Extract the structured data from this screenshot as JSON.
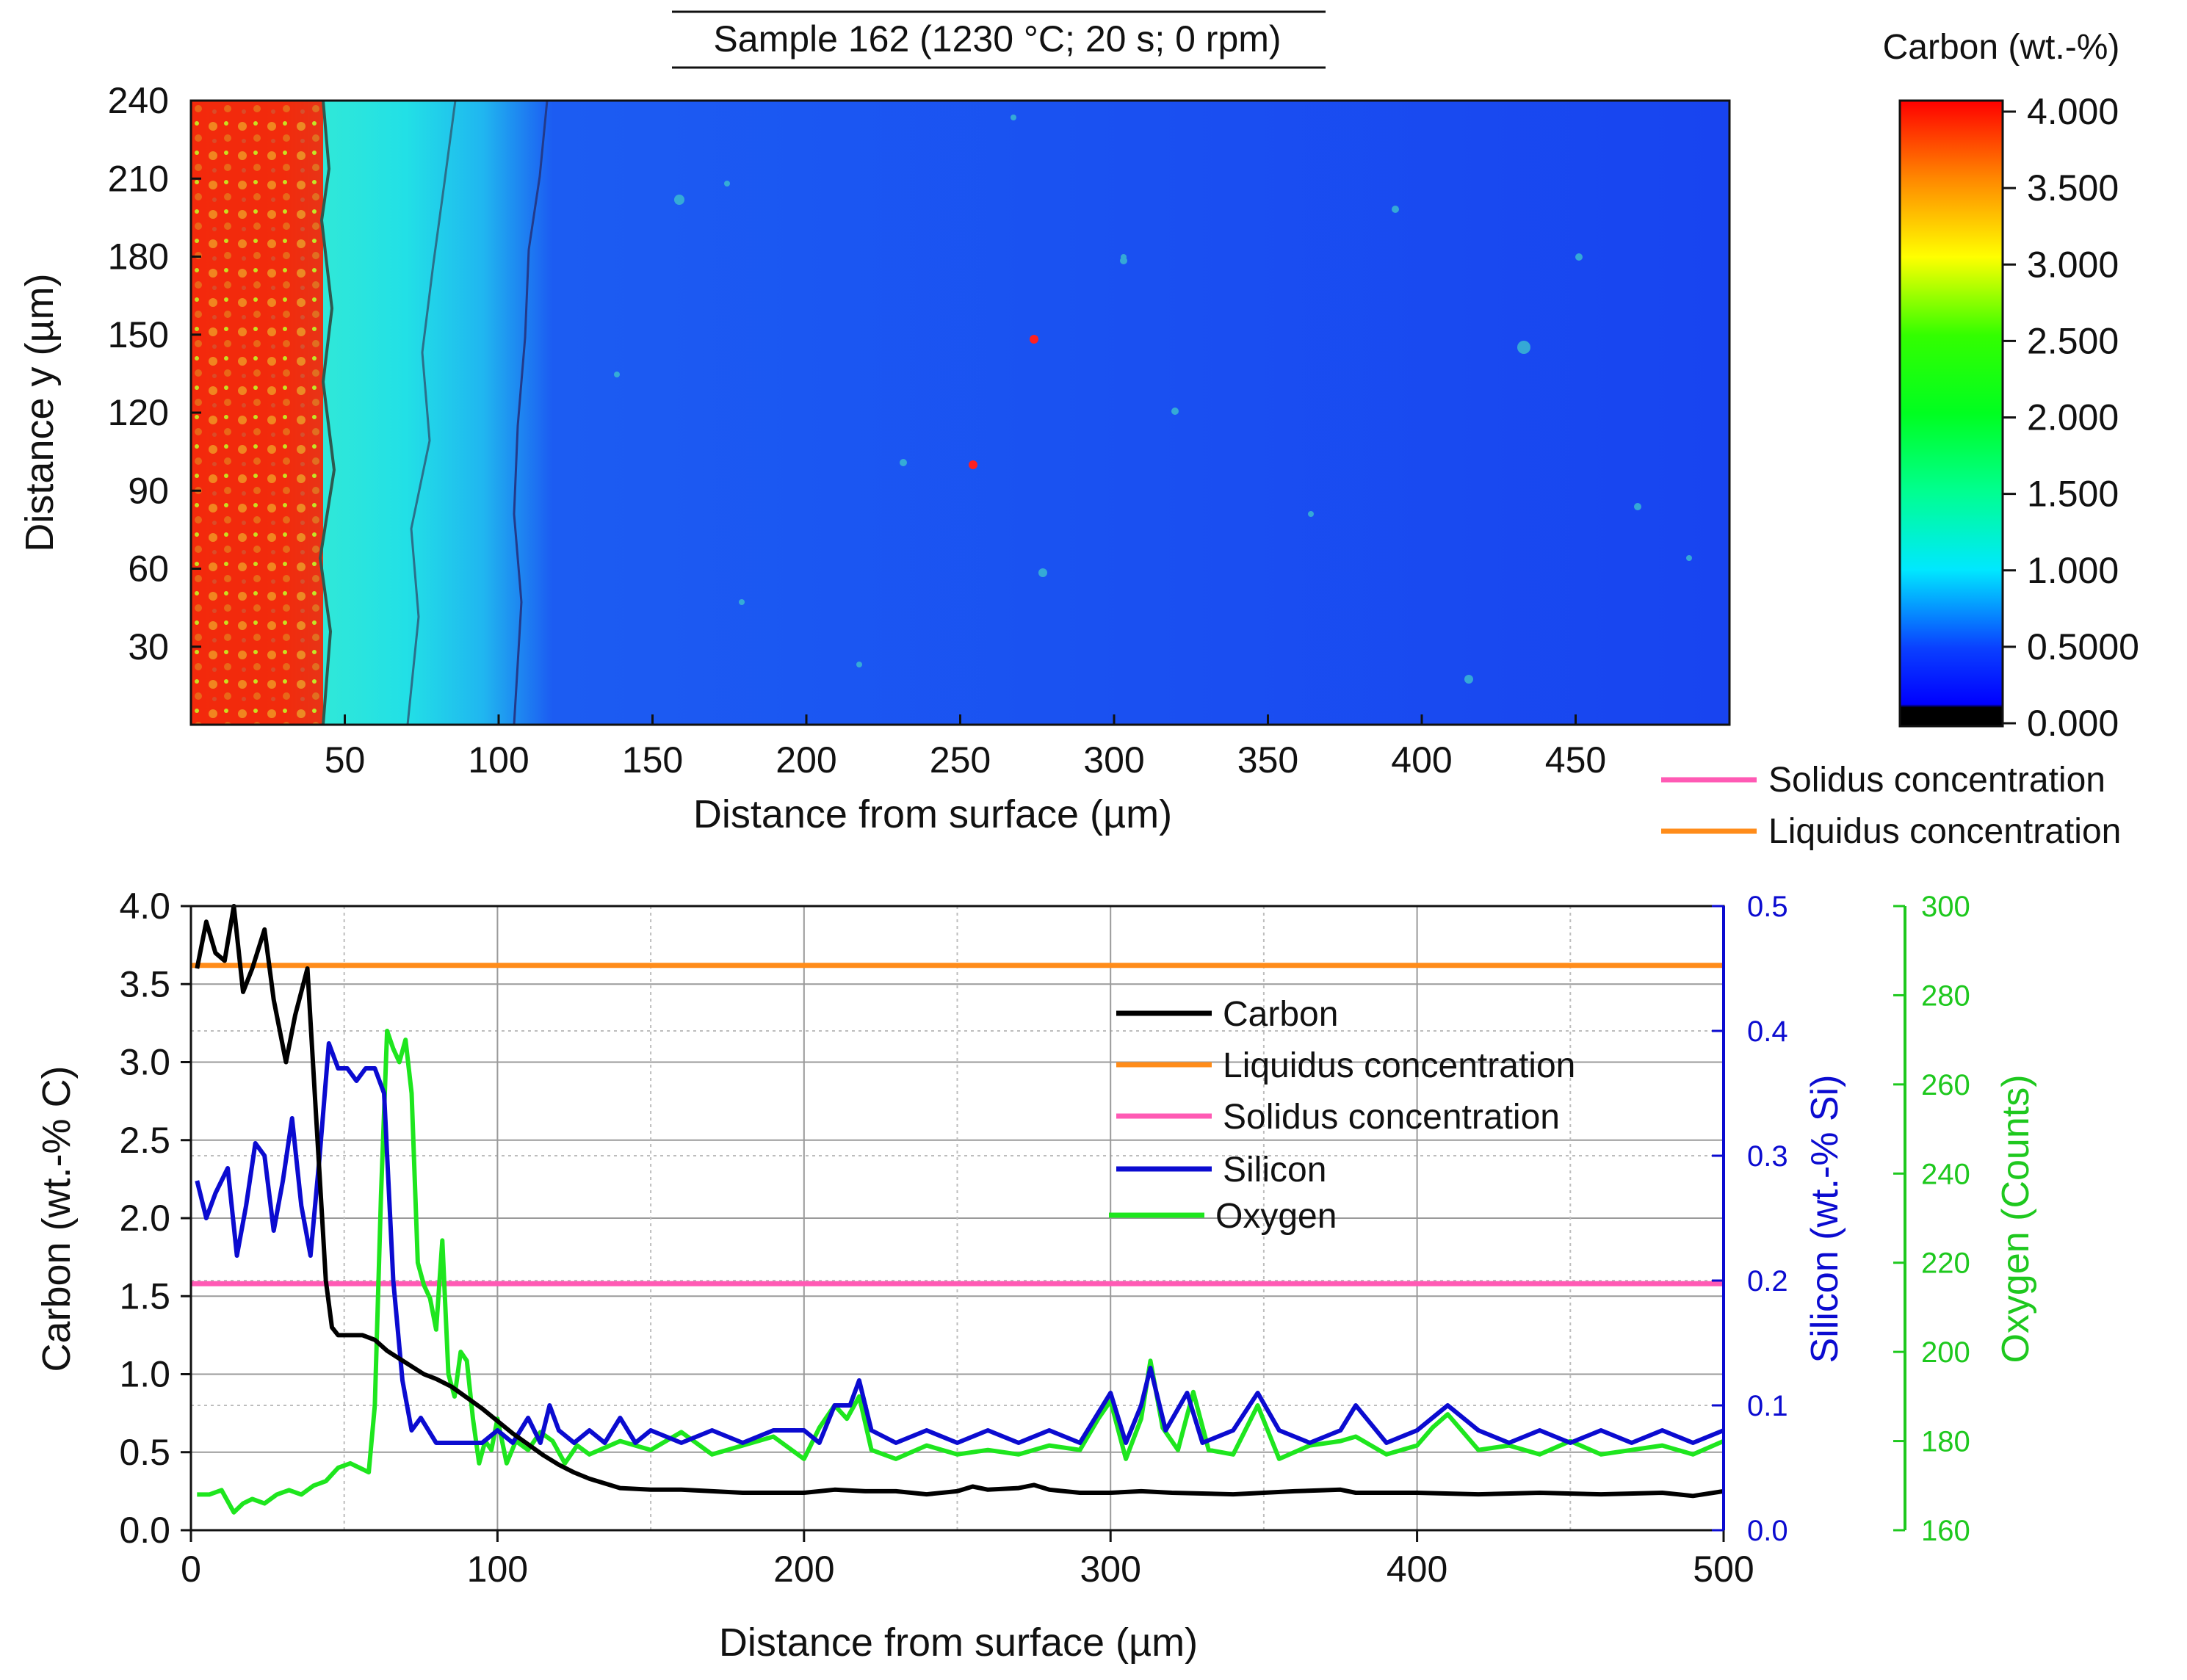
{
  "map": {
    "title": "Sample 162 (1230 °C; 20 s; 0 rpm)",
    "xlabel": "Distance from surface (µm)",
    "ylabel": "Distance y (µm)",
    "xticks": [
      "50",
      "100",
      "150",
      "200",
      "250",
      "300",
      "350",
      "400",
      "450"
    ],
    "yticks": [
      "30",
      "60",
      "90",
      "120",
      "150",
      "180",
      "210",
      "240"
    ],
    "colorbar_title": "Carbon (wt.-%)",
    "colorbar_ticks": [
      "0.000",
      "0.5000",
      "1.000",
      "1.500",
      "2.000",
      "2.500",
      "3.000",
      "3.500",
      "4.000"
    ],
    "legend": [
      {
        "label": "Solidus concentration",
        "color": "#ff5ab4"
      },
      {
        "label": "Liquidus concentration",
        "color": "#ff8c1a"
      }
    ]
  },
  "chart_data": [
    {
      "type": "heatmap",
      "title": "Sample 162 (1230 °C; 20 s; 0 rpm)",
      "xlabel": "Distance from surface (µm)",
      "ylabel": "Distance y (µm)",
      "xlim": [
        0,
        500
      ],
      "ylim": [
        0,
        240
      ],
      "colorbar": {
        "label": "Carbon (wt.-%)",
        "range": [
          0,
          4
        ]
      },
      "carbon_profile_x": [
        0,
        20,
        40,
        45,
        50,
        60,
        70,
        80,
        90,
        100,
        110,
        120,
        130,
        500
      ],
      "carbon_profile_value": [
        4.0,
        4.0,
        4.0,
        1.3,
        1.25,
        1.2,
        1.05,
        0.95,
        0.85,
        0.7,
        0.55,
        0.4,
        0.25,
        0.2
      ]
    },
    {
      "type": "line",
      "xlabel": "Distance from surface (µm)",
      "ylabel": "Carbon (wt.-% C)",
      "ylabel_right": "Silicon (wt.-% Si)",
      "ylabel_right2": "Oxygen (Counts)",
      "xlim": [
        0,
        500
      ],
      "ylim": [
        0,
        4
      ],
      "ylim_right": [
        0,
        0.5
      ],
      "ylim_right2": [
        160,
        300
      ],
      "xticks": [
        "0",
        "100",
        "200",
        "300",
        "400",
        "500"
      ],
      "yticks": [
        "0.0",
        "0.5",
        "1.0",
        "1.5",
        "2.0",
        "2.5",
        "3.0",
        "3.5",
        "4.0"
      ],
      "yticks_right": [
        "0.0",
        "0.1",
        "0.2",
        "0.3",
        "0.4",
        "0.5"
      ],
      "yticks_right2": [
        "160",
        "180",
        "200",
        "220",
        "240",
        "260",
        "280",
        "300"
      ],
      "legend": [
        "Carbon",
        "Liquidus concentration",
        "Solidus concentration",
        "Silicon",
        "Oxygen"
      ],
      "series": [
        {
          "name": "Carbon",
          "axis": "left",
          "color": "#000000",
          "x": [
            2,
            5,
            8,
            11,
            14,
            17,
            20,
            24,
            27,
            31,
            34,
            38,
            41,
            44,
            46,
            48,
            52,
            56,
            60,
            64,
            68,
            72,
            76,
            80,
            85,
            90,
            95,
            100,
            105,
            110,
            115,
            120,
            125,
            130,
            135,
            140,
            150,
            160,
            170,
            180,
            190,
            200,
            210,
            220,
            230,
            240,
            250,
            255,
            260,
            270,
            275,
            280,
            290,
            300,
            310,
            320,
            340,
            360,
            375,
            380,
            400,
            420,
            440,
            460,
            480,
            490,
            500
          ],
          "y": [
            3.6,
            3.9,
            3.7,
            3.65,
            4.0,
            3.45,
            3.6,
            3.85,
            3.4,
            3.0,
            3.3,
            3.6,
            2.6,
            1.6,
            1.3,
            1.25,
            1.25,
            1.25,
            1.22,
            1.15,
            1.1,
            1.05,
            1.0,
            0.97,
            0.92,
            0.85,
            0.78,
            0.7,
            0.62,
            0.55,
            0.48,
            0.42,
            0.37,
            0.33,
            0.3,
            0.27,
            0.26,
            0.26,
            0.25,
            0.24,
            0.24,
            0.24,
            0.26,
            0.25,
            0.25,
            0.23,
            0.25,
            0.28,
            0.26,
            0.27,
            0.29,
            0.26,
            0.24,
            0.24,
            0.25,
            0.24,
            0.23,
            0.25,
            0.26,
            0.24,
            0.24,
            0.23,
            0.24,
            0.23,
            0.24,
            0.22,
            0.25
          ]
        },
        {
          "name": "Liquidus concentration",
          "axis": "left",
          "color": "#ff8c1a",
          "x": [
            0,
            500
          ],
          "y": [
            3.62,
            3.62
          ]
        },
        {
          "name": "Solidus concentration",
          "axis": "left",
          "color": "#ff5ab4",
          "x": [
            0,
            500
          ],
          "y": [
            1.58,
            1.58
          ]
        },
        {
          "name": "Silicon",
          "axis": "right",
          "color": "#0b0bd0",
          "x": [
            2,
            5,
            8,
            12,
            15,
            18,
            21,
            24,
            27,
            30,
            33,
            36,
            39,
            42,
            45,
            48,
            51,
            54,
            57,
            60,
            63,
            66,
            69,
            72,
            75,
            80,
            85,
            90,
            95,
            100,
            105,
            110,
            114,
            117,
            120,
            125,
            130,
            135,
            140,
            145,
            150,
            160,
            170,
            180,
            190,
            200,
            205,
            210,
            215,
            218,
            222,
            230,
            240,
            250,
            260,
            270,
            280,
            290,
            295,
            300,
            305,
            310,
            313,
            318,
            325,
            330,
            340,
            348,
            355,
            365,
            375,
            380,
            390,
            400,
            410,
            420,
            430,
            440,
            450,
            460,
            470,
            480,
            490,
            500
          ],
          "y": [
            0.28,
            0.25,
            0.27,
            0.29,
            0.22,
            0.26,
            0.31,
            0.3,
            0.24,
            0.28,
            0.33,
            0.26,
            0.22,
            0.3,
            0.39,
            0.37,
            0.37,
            0.36,
            0.37,
            0.37,
            0.35,
            0.2,
            0.12,
            0.08,
            0.09,
            0.07,
            0.07,
            0.07,
            0.07,
            0.08,
            0.07,
            0.09,
            0.07,
            0.1,
            0.08,
            0.07,
            0.08,
            0.07,
            0.09,
            0.07,
            0.08,
            0.07,
            0.08,
            0.07,
            0.08,
            0.08,
            0.07,
            0.1,
            0.1,
            0.12,
            0.08,
            0.07,
            0.08,
            0.07,
            0.08,
            0.07,
            0.08,
            0.07,
            0.09,
            0.11,
            0.07,
            0.1,
            0.13,
            0.08,
            0.11,
            0.07,
            0.08,
            0.11,
            0.08,
            0.07,
            0.08,
            0.1,
            0.07,
            0.08,
            0.1,
            0.08,
            0.07,
            0.08,
            0.07,
            0.08,
            0.07,
            0.08,
            0.07,
            0.08
          ]
        },
        {
          "name": "Oxygen",
          "axis": "right2",
          "color": "#1ee61e",
          "x": [
            2,
            6,
            10,
            14,
            17,
            20,
            24,
            28,
            32,
            36,
            40,
            44,
            48,
            52,
            55,
            58,
            60,
            62,
            64,
            66,
            68,
            70,
            72,
            74,
            76,
            78,
            80,
            82,
            84,
            86,
            88,
            90,
            92,
            94,
            96,
            98,
            100,
            103,
            106,
            110,
            114,
            118,
            122,
            126,
            130,
            140,
            150,
            160,
            170,
            180,
            190,
            200,
            205,
            210,
            214,
            218,
            222,
            230,
            240,
            250,
            260,
            270,
            280,
            290,
            296,
            300,
            305,
            310,
            313,
            317,
            322,
            327,
            332,
            340,
            348,
            355,
            365,
            375,
            380,
            390,
            400,
            405,
            410,
            420,
            430,
            440,
            450,
            460,
            470,
            480,
            490,
            500
          ],
          "y": [
            168,
            168,
            169,
            164,
            166,
            167,
            166,
            168,
            169,
            168,
            170,
            171,
            174,
            175,
            174,
            173,
            188,
            235,
            272,
            268,
            265,
            270,
            258,
            220,
            215,
            212,
            205,
            225,
            195,
            190,
            200,
            198,
            185,
            175,
            180,
            178,
            185,
            175,
            180,
            178,
            182,
            180,
            175,
            179,
            177,
            180,
            178,
            182,
            177,
            179,
            181,
            176,
            183,
            188,
            185,
            190,
            178,
            176,
            179,
            177,
            178,
            177,
            179,
            178,
            185,
            189,
            176,
            185,
            198,
            183,
            178,
            191,
            178,
            177,
            188,
            176,
            179,
            180,
            181,
            177,
            179,
            183,
            186,
            178,
            179,
            177,
            180,
            177,
            178,
            179,
            177,
            180
          ]
        }
      ]
    }
  ]
}
